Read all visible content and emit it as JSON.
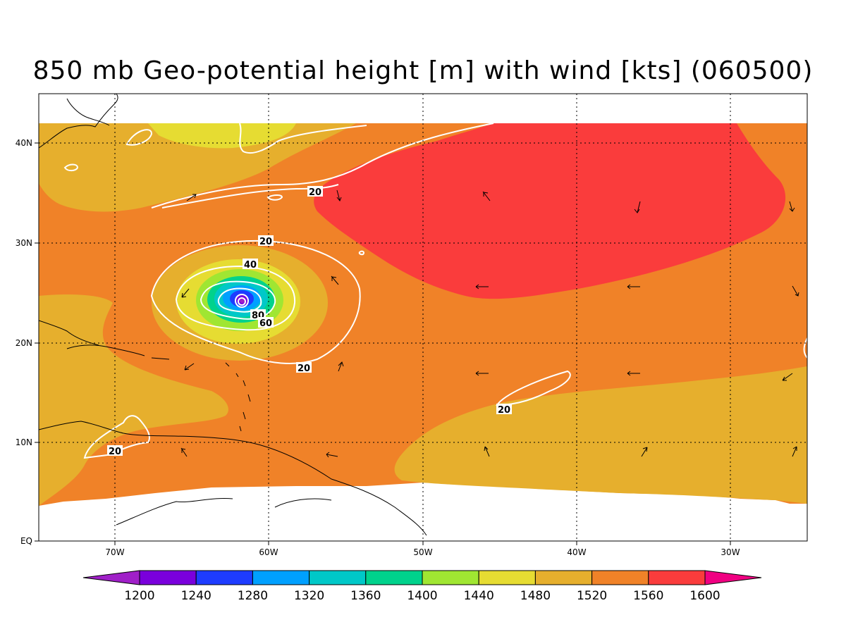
{
  "title": "850 mb Geo-potential height [m] with wind [kts] (060500)",
  "axes": {
    "x_ticks": [
      "70W",
      "60W",
      "50W",
      "40W",
      "30W"
    ],
    "y_ticks": [
      "EQ",
      "10N",
      "20N",
      "30N",
      "40N"
    ]
  },
  "contour_labels": [
    "20",
    "20",
    "40",
    "80",
    "60",
    "20",
    "20",
    "20"
  ],
  "colorbar": {
    "labels": [
      "1200",
      "1240",
      "1280",
      "1320",
      "1360",
      "1400",
      "1440",
      "1480",
      "1520",
      "1560",
      "1600"
    ],
    "colors": [
      "#a020c8",
      "#7a00dc",
      "#1e3cff",
      "#00a0ff",
      "#00c8c8",
      "#00d28c",
      "#a0e632",
      "#e6dc32",
      "#e6af2d",
      "#f08228",
      "#fa3c3c",
      "#f00082"
    ]
  },
  "colors": {
    "field_1520": "#e6af2d",
    "field_1560": "#f08228",
    "field_1600": "#fa3c3c",
    "field_1480": "#e6dc32",
    "contour": "#ffffff"
  }
}
